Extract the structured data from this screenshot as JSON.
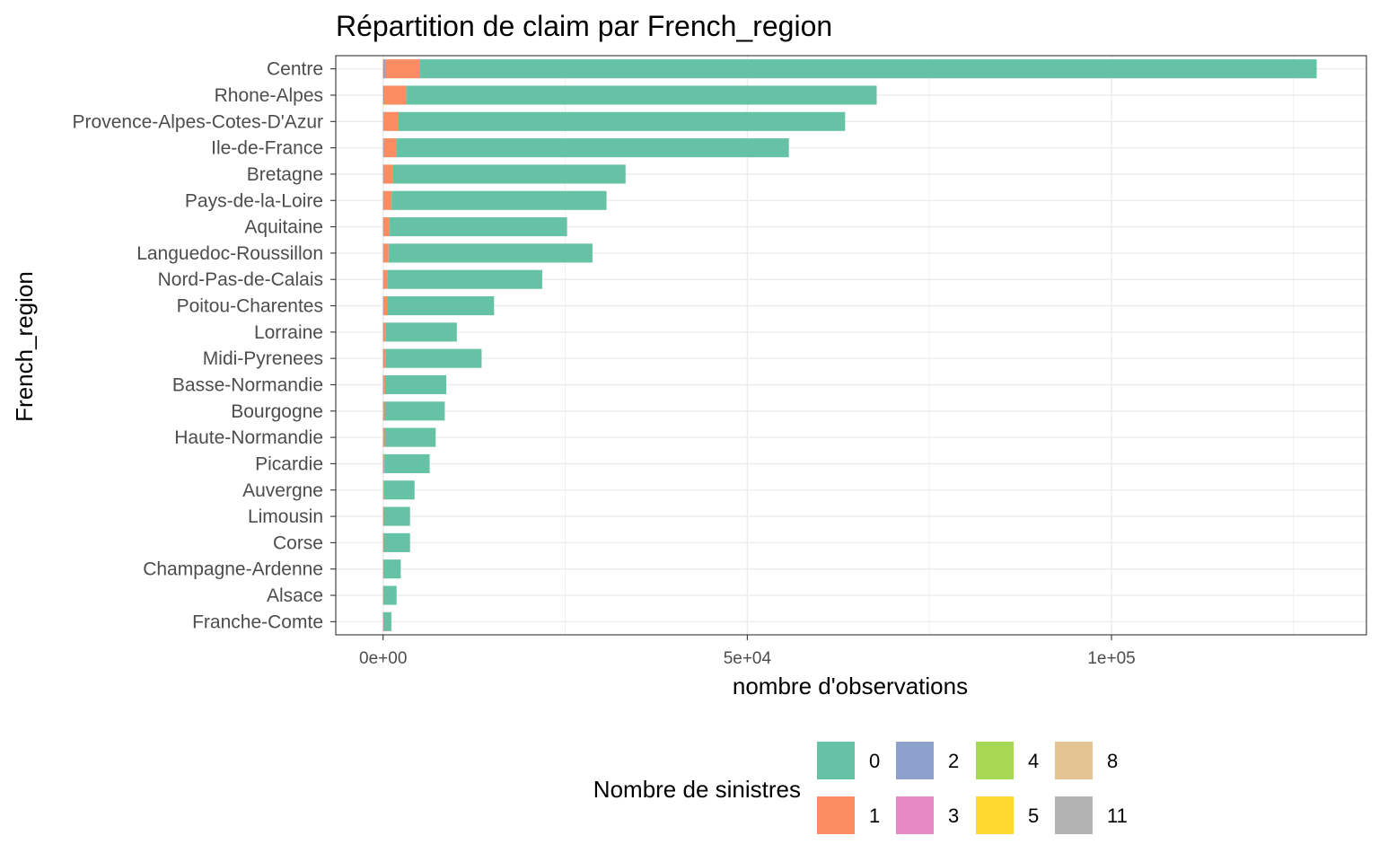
{
  "chart_data": {
    "type": "bar",
    "orientation": "horizontal",
    "stacked": true,
    "title": "Répartition de claim par French_region",
    "xlabel": "nombre d'observations",
    "ylabel": "French_region",
    "xlim": [
      -6500,
      135000
    ],
    "xticks": [
      {
        "value": 0,
        "label": "0e+00"
      },
      {
        "value": 50000,
        "label": "5e+04"
      },
      {
        "value": 100000,
        "label": "1e+05"
      }
    ],
    "grid": true,
    "legend": {
      "title": "Nombre de sinistres",
      "position": "bottom",
      "entries": [
        {
          "label": "0",
          "color": "#66c2a5"
        },
        {
          "label": "1",
          "color": "#fc8d62"
        },
        {
          "label": "2",
          "color": "#8da0cb"
        },
        {
          "label": "3",
          "color": "#e78ac3"
        },
        {
          "label": "4",
          "color": "#a6d854"
        },
        {
          "label": "5",
          "color": "#ffd92f"
        },
        {
          "label": "8",
          "color": "#e5c494"
        },
        {
          "label": "11",
          "color": "#b3b3b3"
        }
      ]
    },
    "categories": [
      "Centre",
      "Rhone-Alpes",
      "Provence-Alpes-Cotes-D'Azur",
      "Ile-de-France",
      "Bretagne",
      "Pays-de-la-Loire",
      "Aquitaine",
      "Languedoc-Roussillon",
      "Nord-Pas-de-Calais",
      "Poitou-Charentes",
      "Lorraine",
      "Midi-Pyrenees",
      "Basse-Normandie",
      "Bourgogne",
      "Haute-Normandie",
      "Picardie",
      "Auvergne",
      "Limousin",
      "Corse",
      "Champagne-Ardenne",
      "Alsace",
      "Franche-Comte"
    ],
    "series": [
      {
        "name": "0",
        "color": "#66c2a5",
        "values": [
          123200,
          64600,
          61300,
          53900,
          31900,
          29500,
          24400,
          28000,
          21200,
          14700,
          9800,
          13200,
          8400,
          8250,
          7000,
          6200,
          4200,
          3600,
          3600,
          2350,
          1800,
          1100
        ]
      },
      {
        "name": "1",
        "color": "#fc8d62",
        "values": [
          4700,
          3000,
          2000,
          1700,
          1300,
          1100,
          800,
          700,
          600,
          500,
          300,
          300,
          250,
          200,
          200,
          180,
          110,
          90,
          90,
          70,
          50,
          30
        ]
      },
      {
        "name": "2",
        "color": "#8da0cb",
        "values": [
          250,
          150,
          120,
          100,
          80,
          70,
          50,
          40,
          40,
          30,
          20,
          20,
          20,
          15,
          15,
          10,
          8,
          6,
          6,
          5,
          4,
          2
        ]
      },
      {
        "name": "3",
        "color": "#e78ac3",
        "values": [
          15,
          10,
          8,
          7,
          5,
          5,
          3,
          3,
          3,
          2,
          1,
          1,
          1,
          1,
          1,
          1,
          0,
          0,
          0,
          0,
          0,
          0
        ]
      },
      {
        "name": "4",
        "color": "#a6d854",
        "values": [
          3,
          2,
          2,
          1,
          1,
          1,
          1,
          0,
          0,
          0,
          0,
          0,
          0,
          0,
          0,
          0,
          0,
          0,
          0,
          0,
          0,
          0
        ]
      },
      {
        "name": "5",
        "color": "#ffd92f",
        "values": [
          1,
          1,
          0,
          0,
          0,
          0,
          0,
          0,
          0,
          0,
          0,
          0,
          0,
          0,
          0,
          0,
          0,
          0,
          0,
          0,
          0,
          0
        ]
      },
      {
        "name": "8",
        "color": "#e5c494",
        "values": [
          1,
          0,
          0,
          0,
          0,
          0,
          0,
          0,
          0,
          0,
          0,
          0,
          0,
          0,
          0,
          0,
          0,
          0,
          0,
          0,
          0,
          0
        ]
      },
      {
        "name": "11",
        "color": "#b3b3b3",
        "values": [
          0,
          1,
          0,
          0,
          0,
          0,
          0,
          0,
          0,
          0,
          0,
          0,
          0,
          0,
          0,
          0,
          0,
          0,
          0,
          0,
          0,
          0
        ]
      }
    ]
  }
}
